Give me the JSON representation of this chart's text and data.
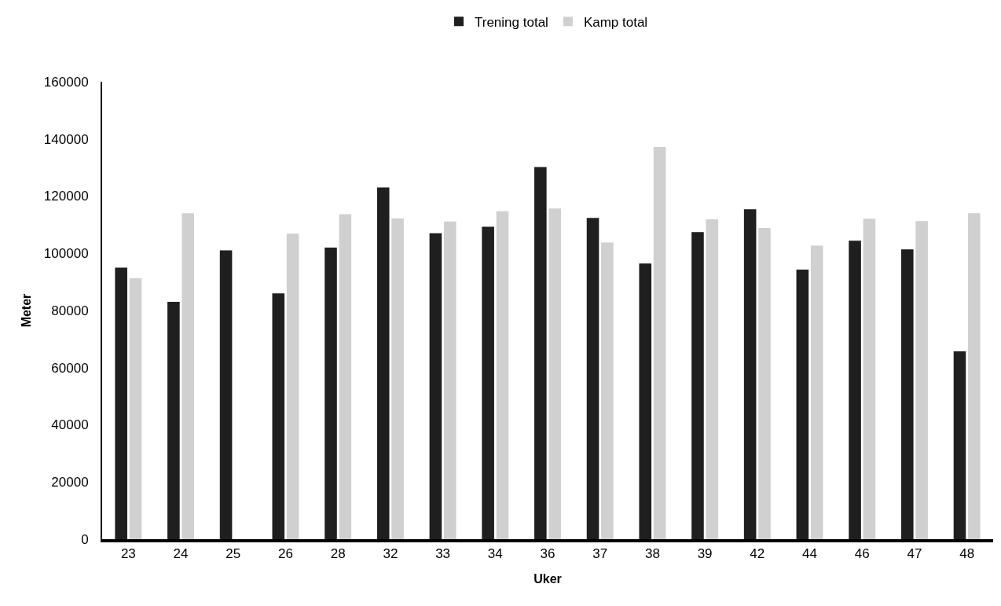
{
  "chart_data": {
    "type": "bar",
    "xlabel": "Uker",
    "ylabel": "Meter",
    "categories": [
      "23",
      "24",
      "25",
      "26",
      "28",
      "32",
      "33",
      "34",
      "36",
      "37",
      "38",
      "39",
      "42",
      "44",
      "46",
      "47",
      "48"
    ],
    "series": [
      {
        "name": "Trening total",
        "color": "#1f1f1f",
        "values": [
          95000,
          83000,
          101000,
          86000,
          102000,
          123000,
          107000,
          109300,
          130200,
          112400,
          96400,
          107400,
          115400,
          94300,
          104400,
          101400,
          65700
        ]
      },
      {
        "name": "Kamp total",
        "color": "#d0d0d0",
        "values": [
          91300,
          114000,
          null,
          106900,
          113700,
          112200,
          111100,
          114700,
          115700,
          103800,
          137200,
          111900,
          108900,
          102700,
          112100,
          111300,
          114000
        ]
      }
    ],
    "ylim": [
      0,
      160000
    ],
    "yticks": [
      0,
      20000,
      40000,
      60000,
      80000,
      100000,
      120000,
      140000,
      160000
    ],
    "grid": false,
    "legend": "top"
  }
}
